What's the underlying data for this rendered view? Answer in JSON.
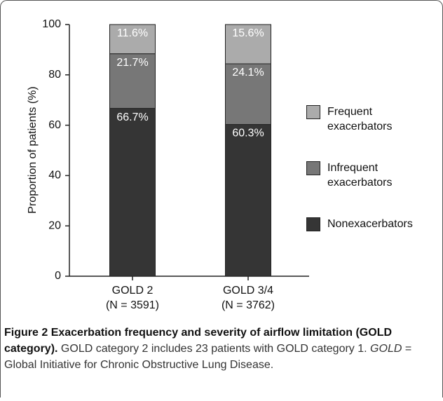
{
  "chart_data": {
    "type": "stacked_bar",
    "y_label": "Proportion of patients (%)",
    "categories": [
      "GOLD 2",
      "GOLD 3/4"
    ],
    "category_notes": [
      "(N = 3591)",
      "(N = 3762)"
    ],
    "series": [
      {
        "name": "Nonexacerbators",
        "color": "#353535",
        "values": [
          66.7,
          60.3
        ],
        "value_labels": [
          "66.7%",
          "60.3%"
        ]
      },
      {
        "name": "Infrequent exacerbators",
        "color": "#777777",
        "values": [
          21.7,
          24.1
        ],
        "value_labels": [
          "21.7%",
          "24.1%"
        ]
      },
      {
        "name": "Frequent exacerbators",
        "color": "#ababab",
        "values": [
          11.6,
          15.6
        ],
        "value_labels": [
          "11.6%",
          "15.6%"
        ]
      }
    ],
    "ylim": [
      0,
      100
    ],
    "yticks": [
      0,
      20,
      40,
      60,
      80,
      100
    ],
    "grid": false,
    "legend": "right"
  },
  "caption": {
    "label": "Figure 2",
    "title": "Exacerbation frequency and severity of airflow limitation (GOLD category).",
    "body": "GOLD category 2 includes 23 patients with GOLD category 1.",
    "abbreviation": "GOLD",
    "definition": "= Global Initiative for Chronic Obstructive Lung Disease."
  }
}
